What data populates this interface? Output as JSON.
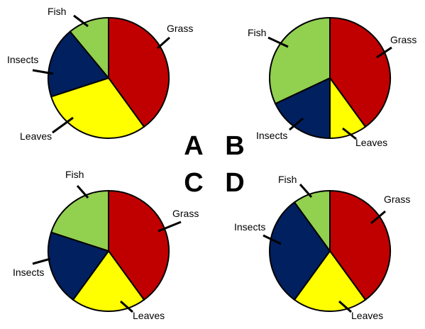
{
  "colors": {
    "Grass": "#c00000",
    "Leaves": "#ffff00",
    "Insects": "#002060",
    "Fish": "#92d050"
  },
  "center_letters": [
    "A",
    "B",
    "C",
    "D"
  ],
  "chart_data": [
    {
      "type": "pie",
      "panel": "A",
      "slices": [
        {
          "label": "Grass",
          "value": 40
        },
        {
          "label": "Leaves",
          "value": 30
        },
        {
          "label": "Insects",
          "value": 19
        },
        {
          "label": "Fish",
          "value": 11
        }
      ]
    },
    {
      "type": "pie",
      "panel": "B",
      "slices": [
        {
          "label": "Grass",
          "value": 40
        },
        {
          "label": "Leaves",
          "value": 10
        },
        {
          "label": "Insects",
          "value": 18
        },
        {
          "label": "Fish",
          "value": 32
        }
      ]
    },
    {
      "type": "pie",
      "panel": "C",
      "slices": [
        {
          "label": "Grass",
          "value": 40
        },
        {
          "label": "Leaves",
          "value": 20
        },
        {
          "label": "Insects",
          "value": 20
        },
        {
          "label": "Fish",
          "value": 20
        }
      ]
    },
    {
      "type": "pie",
      "panel": "D",
      "slices": [
        {
          "label": "Grass",
          "value": 40
        },
        {
          "label": "Leaves",
          "value": 20
        },
        {
          "label": "Insects",
          "value": 30
        },
        {
          "label": "Fish",
          "value": 10
        }
      ]
    }
  ]
}
